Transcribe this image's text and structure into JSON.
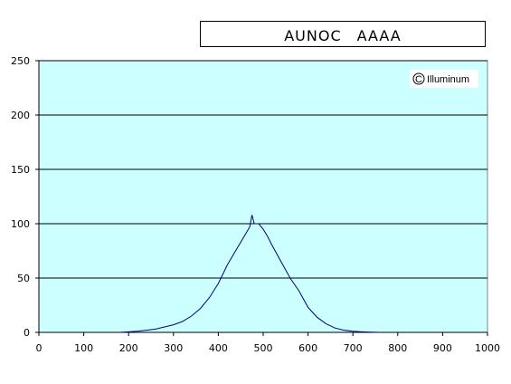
{
  "chart_data": {
    "type": "line",
    "title": "AUNOC　AAAA",
    "watermark": "Illuminum",
    "xlim": [
      0,
      1000
    ],
    "ylim": [
      0,
      250
    ],
    "x_ticks": [
      0,
      100,
      200,
      300,
      400,
      500,
      600,
      700,
      800,
      900,
      1000
    ],
    "y_ticks": [
      0,
      50,
      100,
      150,
      200,
      250
    ],
    "grid": "horizontal",
    "legend": "none",
    "colors": {
      "plot_background": "#ccffff",
      "line": "#000080",
      "gridline": "#000000"
    },
    "series": [
      {
        "x": [
          180,
          200,
          220,
          240,
          260,
          280,
          300,
          320,
          340,
          360,
          380,
          400,
          420,
          440,
          460,
          470,
          475,
          480,
          490,
          500,
          510,
          520,
          540,
          560,
          580,
          600,
          620,
          640,
          660,
          680,
          700,
          720,
          740,
          760
        ],
        "values": [
          0,
          0.5,
          1,
          2,
          3,
          5,
          7,
          10,
          15,
          22,
          32,
          45,
          62,
          76,
          90,
          97,
          108,
          100,
          100,
          95,
          88,
          80,
          65,
          50,
          38,
          23,
          14,
          8,
          4,
          2,
          1,
          0.5,
          0.2,
          0
        ]
      }
    ]
  }
}
